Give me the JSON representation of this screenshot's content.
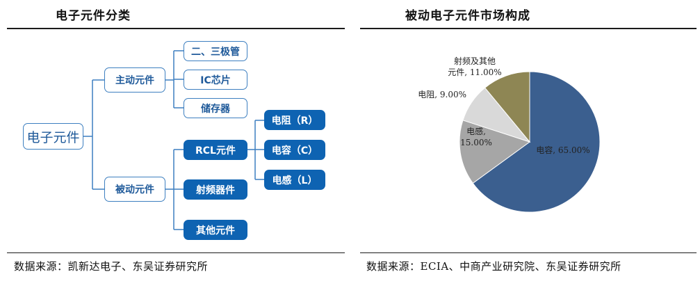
{
  "left": {
    "title": "电子元件分类",
    "source": "数据来源：凯新达电子、东吴证券研究所",
    "tree": {
      "root": "电子元件",
      "active": "主动元件",
      "active_children": [
        "二、三极管",
        "IC芯片",
        "储存器"
      ],
      "passive": "被动元件",
      "passive_children": [
        "RCL元件",
        "射频器件",
        "其他元件"
      ],
      "rcl_children": [
        "电阻（R）",
        "电容（C）",
        "电感（L）"
      ]
    }
  },
  "right": {
    "title": "被动电子元件市场构成",
    "source": "数据来源：ECIA、中商产业研究院、东吴证券研究所"
  },
  "chart_data": {
    "type": "pie",
    "title": "被动电子元件市场构成",
    "slices": [
      {
        "label": "电容",
        "value": 65.0,
        "display": "电容, 65.00%",
        "color": "#3b5f8f"
      },
      {
        "label": "电感",
        "value": 15.0,
        "display": "电感,\n15.00%",
        "color": "#a6a6a6"
      },
      {
        "label": "电阻",
        "value": 9.0,
        "display": "电阻, 9.00%",
        "color": "#d9d9d9"
      },
      {
        "label": "射频及其他元件",
        "value": 11.0,
        "display": "射频及其他\n元件, 11.00%",
        "color": "#8e8654"
      }
    ],
    "start_angle_deg": 0,
    "direction": "clockwise"
  }
}
